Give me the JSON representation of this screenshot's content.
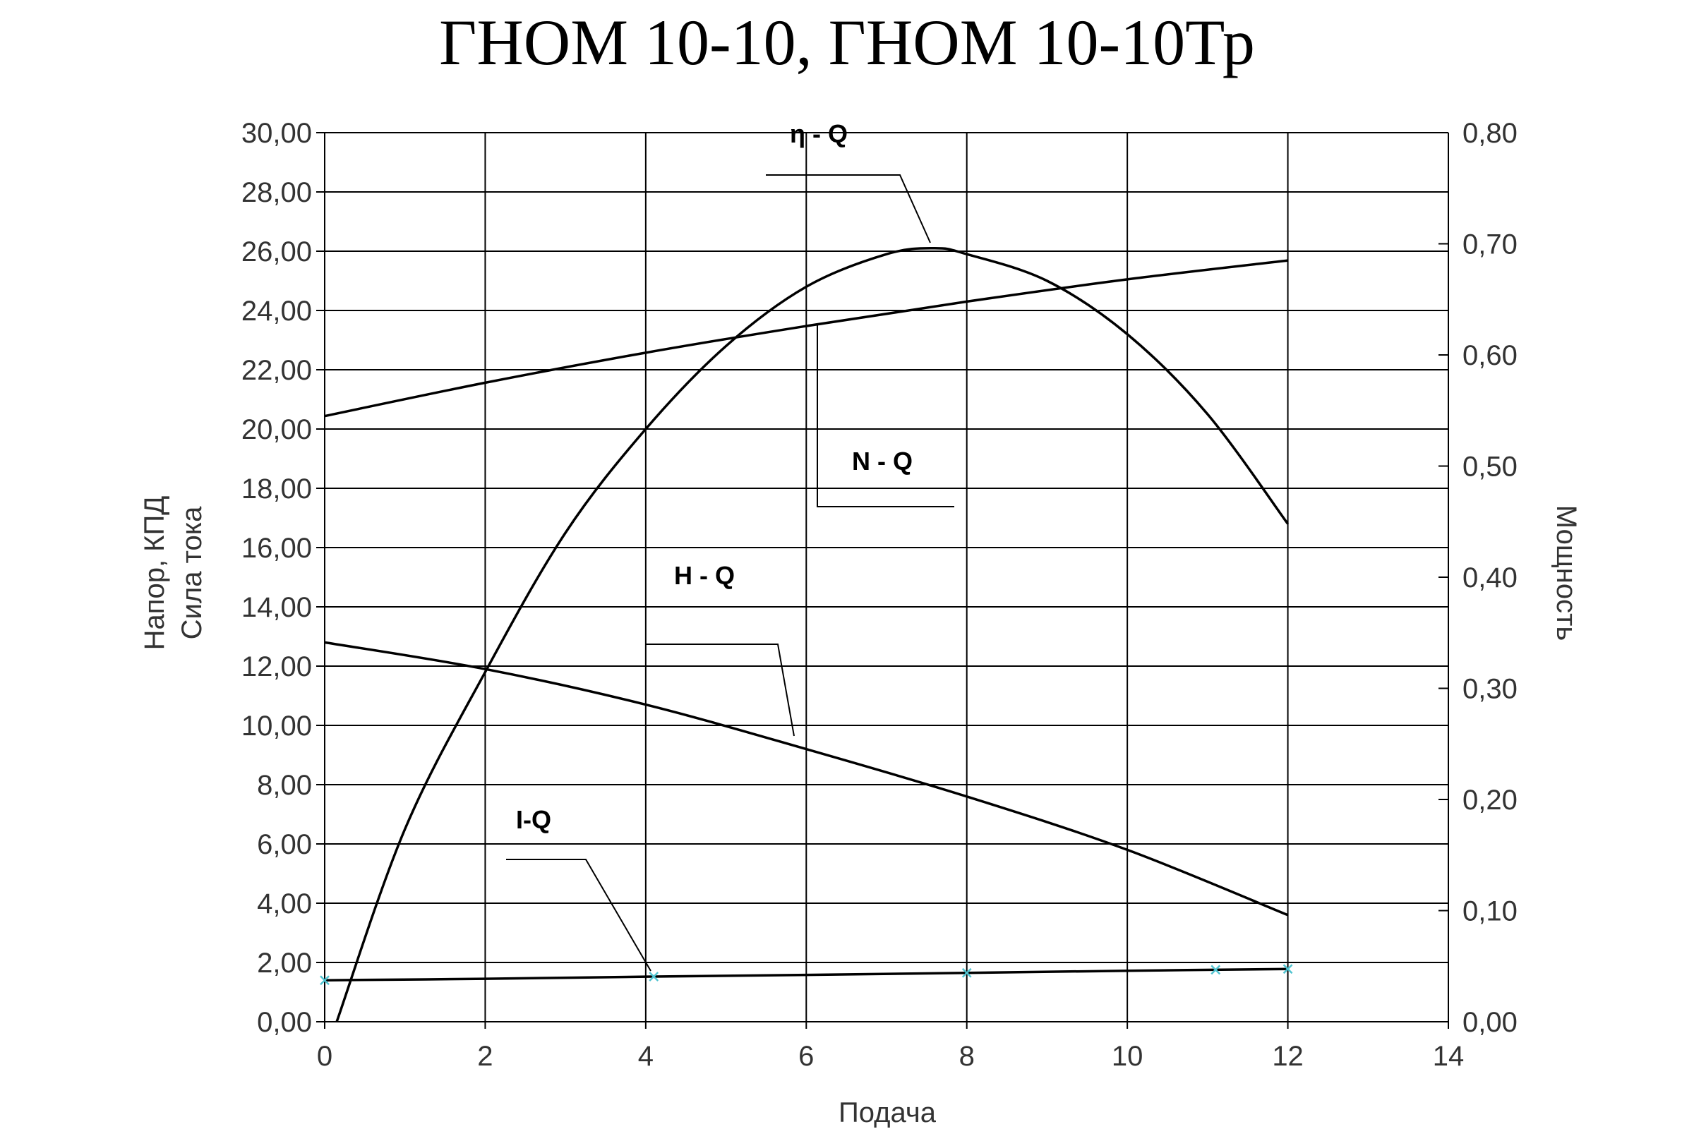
{
  "chart_data": {
    "type": "line",
    "title": "ГНОМ 10-10, ГНОМ 10-10Тр",
    "xlabel": "Подача",
    "ylabel_left": [
      "Напор, КПД",
      "Сила тока"
    ],
    "ylabel_right": "Мощность",
    "xlim": [
      0,
      14
    ],
    "ylim_left": [
      0,
      30
    ],
    "ylim_right": [
      0,
      0.8
    ],
    "x_ticks": [
      "0",
      "2",
      "4",
      "6",
      "8",
      "10",
      "12",
      "14"
    ],
    "y_left_ticks": [
      "0,00",
      "2,00",
      "4,00",
      "6,00",
      "8,00",
      "10,00",
      "12,00",
      "14,00",
      "16,00",
      "18,00",
      "20,00",
      "22,00",
      "24,00",
      "26,00",
      "28,00",
      "30,00"
    ],
    "y_right_ticks": [
      "0,00",
      "0,10",
      "0,20",
      "0,30",
      "0,40",
      "0,50",
      "0,60",
      "0,70",
      "0,80"
    ],
    "grid": true,
    "series": [
      {
        "name": "η - Q",
        "axis": "left",
        "x": [
          0.15,
          1,
          2,
          3,
          4,
          5,
          6,
          7,
          7.6,
          8,
          9,
          10,
          11,
          12
        ],
        "y": [
          0,
          6.5,
          11.8,
          16.5,
          20.0,
          22.8,
          24.8,
          25.9,
          26.1,
          25.9,
          25.0,
          23.2,
          20.5,
          16.8
        ]
      },
      {
        "name": "N - Q",
        "axis": "right",
        "x": [
          0,
          2,
          4,
          6,
          8,
          10,
          12
        ],
        "y": [
          0.545,
          0.575,
          0.602,
          0.626,
          0.648,
          0.668,
          0.685
        ]
      },
      {
        "name": "H - Q",
        "axis": "left",
        "x": [
          0,
          2,
          4,
          6,
          8,
          10,
          12
        ],
        "y": [
          12.8,
          11.9,
          10.7,
          9.2,
          7.6,
          5.8,
          3.6
        ]
      },
      {
        "name": "I-Q",
        "axis": "left",
        "x": [
          0,
          2,
          4,
          6,
          8,
          10,
          12
        ],
        "y": [
          1.4,
          1.45,
          1.52,
          1.58,
          1.65,
          1.72,
          1.78
        ]
      }
    ]
  }
}
